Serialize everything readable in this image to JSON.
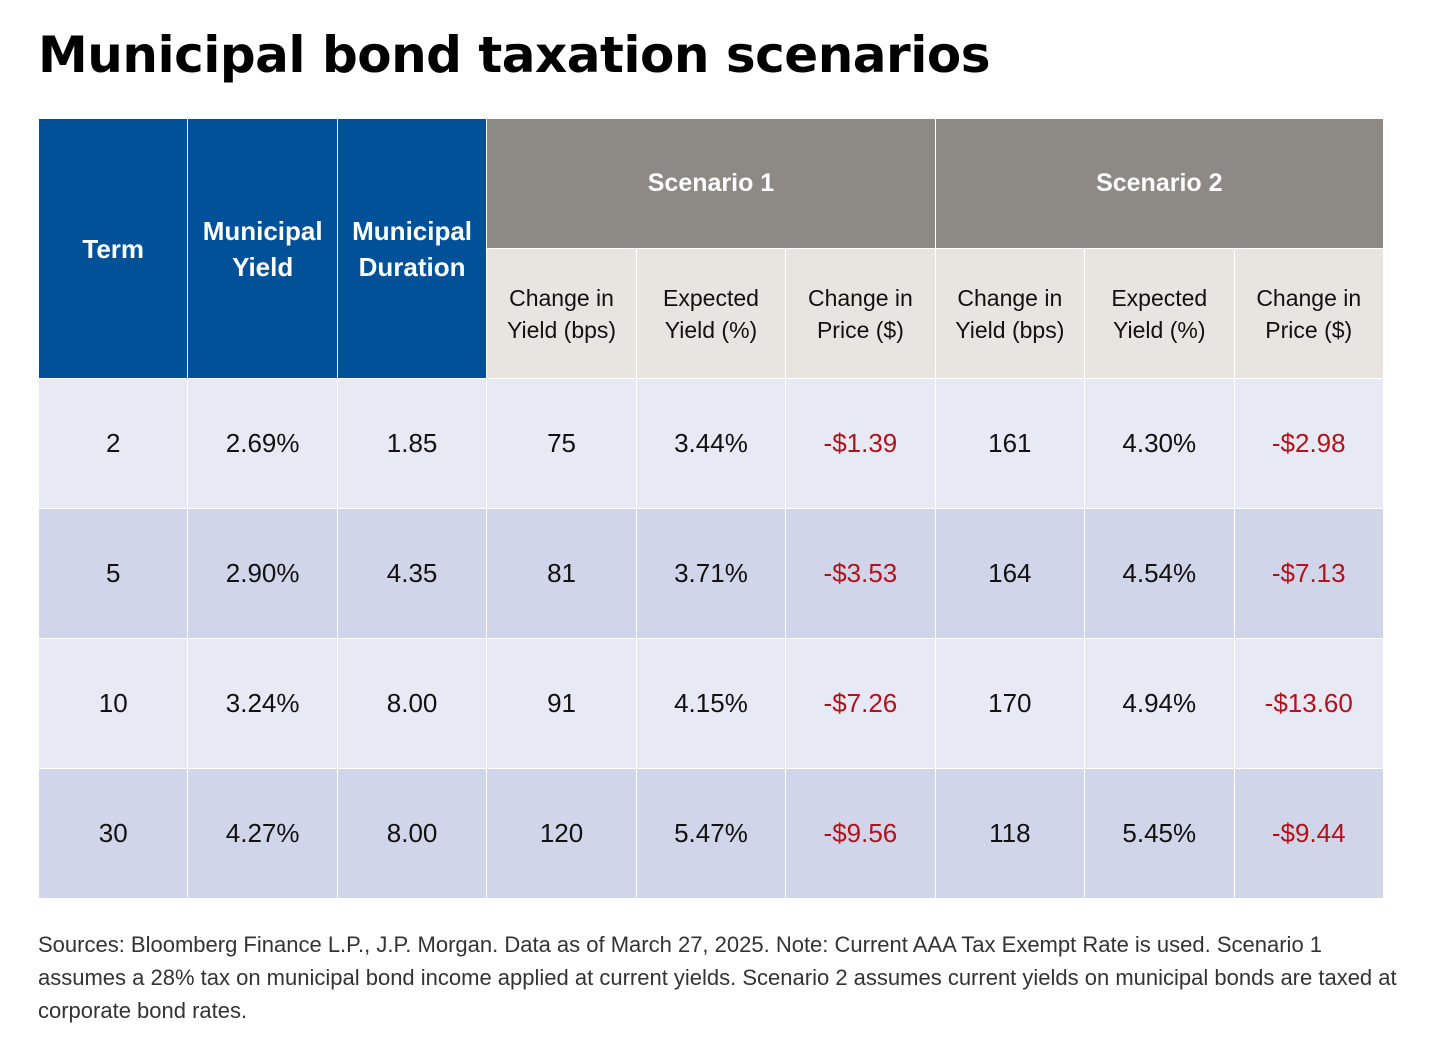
{
  "title": "Municipal bond taxation scenarios",
  "header": {
    "term": "Term",
    "muni_yield": [
      "Municipal",
      "Yield"
    ],
    "muni_duration": [
      "Municipal",
      "Duration"
    ],
    "scenario1": "Scenario 1",
    "scenario2": "Scenario 2",
    "sub": {
      "change_yield": [
        "Change in",
        "Yield (bps)"
      ],
      "expected_yield": [
        "Expected",
        "Yield (%)"
      ],
      "change_price": [
        "Change in",
        "Price ($)"
      ]
    }
  },
  "rows": [
    {
      "term": "2",
      "yield": "2.69%",
      "duration": "1.85",
      "s1_change": "75",
      "s1_expected": "3.44%",
      "s1_price": "-$1.39",
      "s2_change": "161",
      "s2_expected": "4.30%",
      "s2_price": "-$2.98"
    },
    {
      "term": "5",
      "yield": "2.90%",
      "duration": "4.35",
      "s1_change": "81",
      "s1_expected": "3.71%",
      "s1_price": "-$3.53",
      "s2_change": "164",
      "s2_expected": "4.54%",
      "s2_price": "-$7.13"
    },
    {
      "term": "10",
      "yield": "3.24%",
      "duration": "8.00",
      "s1_change": "91",
      "s1_expected": "4.15%",
      "s1_price": "-$7.26",
      "s2_change": "170",
      "s2_expected": "4.94%",
      "s2_price": "-$13.60"
    },
    {
      "term": "30",
      "yield": "4.27%",
      "duration": "8.00",
      "s1_change": "120",
      "s1_expected": "5.47%",
      "s1_price": "-$9.56",
      "s2_change": "118",
      "s2_expected": "5.45%",
      "s2_price": "-$9.44"
    }
  ],
  "footnote": "Sources: Bloomberg Finance L.P., J.P. Morgan. Data as of March 27, 2025. Note: Current AAA Tax Exempt Rate is used. Scenario 1 assumes a 28% tax on municipal bond income applied at current yields. Scenario 2 assumes current yields on municipal bonds are taxed at corporate bond rates.",
  "colors": {
    "header_blue": "#005198",
    "scenario_gray": "#8d8a85",
    "subheader_beige": "#e8e4df",
    "row_light": "#e7eaf4",
    "row_dark": "#d1d5e9",
    "negative_red": "#b3121b"
  }
}
